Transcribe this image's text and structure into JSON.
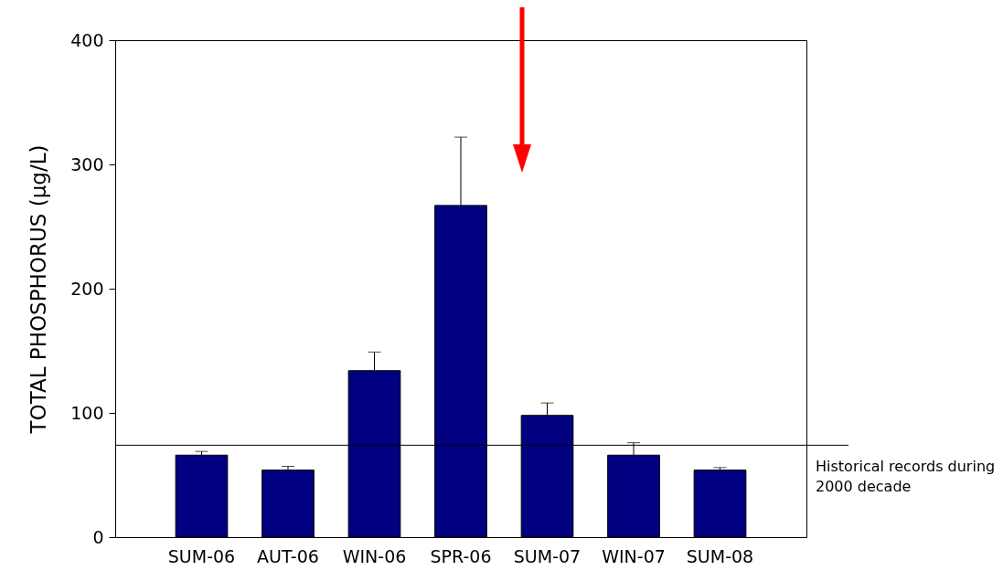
{
  "chart_data": {
    "type": "bar",
    "ylabel": "TOTAL PHOSPHORUS (μg/L)",
    "categories": [
      "SUM-06",
      "AUT-06",
      "WIN-06",
      "SPR-06",
      "SUM-07",
      "WIN-07",
      "SUM-08"
    ],
    "series": [
      {
        "color": "#000080",
        "values": [
          66,
          54,
          134,
          267,
          98,
          66,
          54
        ],
        "errors": [
          [
            66,
            69
          ],
          [
            54,
            57
          ],
          [
            134,
            149
          ],
          [
            267,
            322
          ],
          [
            98,
            108
          ],
          [
            66,
            76
          ],
          [
            54,
            56
          ]
        ]
      }
    ],
    "ylim": [
      0,
      400
    ],
    "yticks": [
      0,
      100,
      200,
      300,
      400
    ],
    "grid": false,
    "ref_lines": [
      {
        "axis": "y",
        "value": 74,
        "label": "Historical records during 2000 decade",
        "color": "#000000"
      }
    ]
  }
}
